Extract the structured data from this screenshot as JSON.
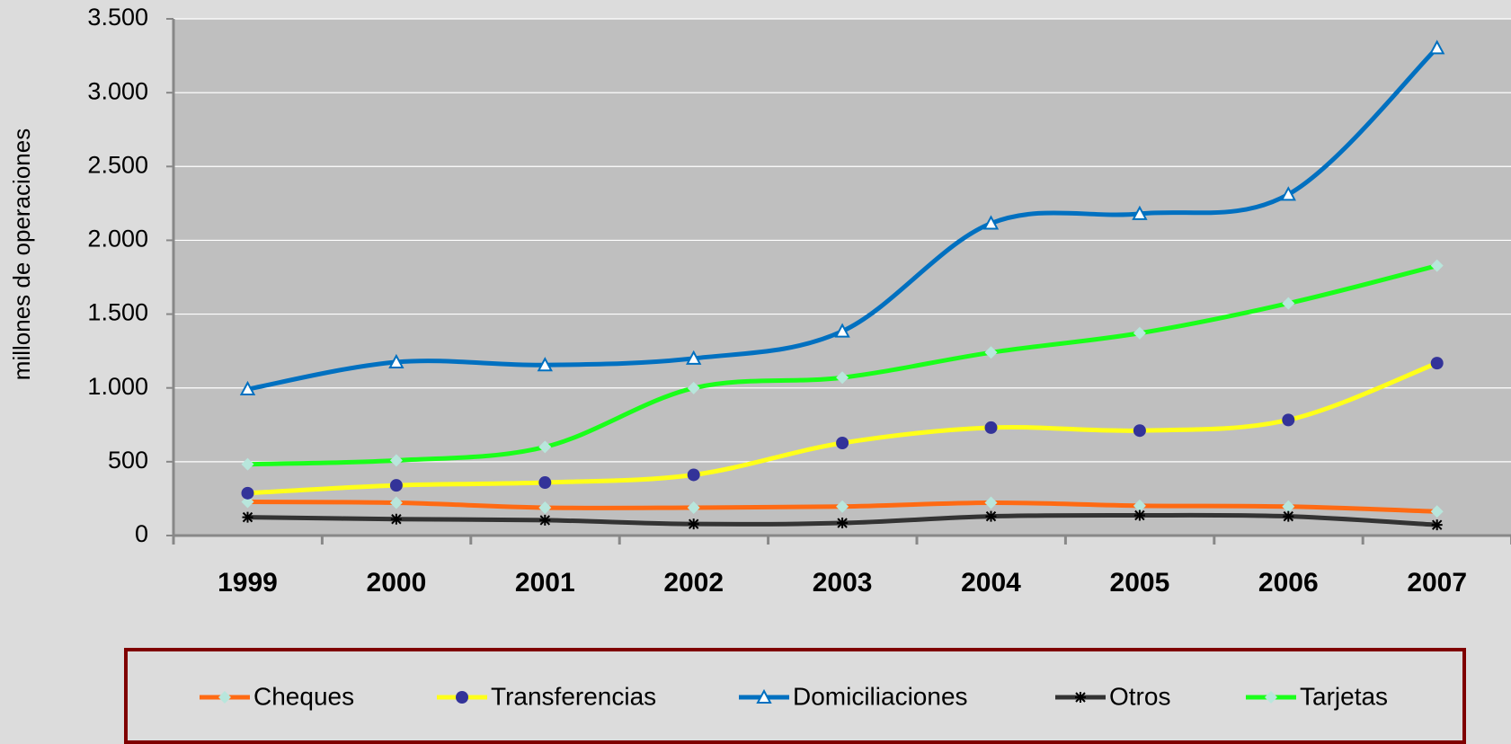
{
  "chart_data": {
    "type": "line",
    "ylabel": "millones de operaciones",
    "categories": [
      "1999",
      "2000",
      "2001",
      "2002",
      "2003",
      "2004",
      "2005",
      "2006",
      "2007"
    ],
    "series": [
      {
        "name": "Cheques",
        "color": "#ff6a13",
        "marker": "diamond",
        "marker_color": "#b8e6dc",
        "values": [
          228,
          222,
          189,
          189,
          196,
          222,
          202,
          196,
          163
        ]
      },
      {
        "name": "Transferencias",
        "color": "#ffff1a",
        "marker": "circle",
        "marker_color": "#333399",
        "values": [
          287,
          340,
          359,
          411,
          627,
          731,
          711,
          783,
          1168
        ]
      },
      {
        "name": "Domiciliaciones",
        "color": "#0070c0",
        "marker": "triangle",
        "marker_color": "#ffffff",
        "values": [
          992,
          1175,
          1155,
          1200,
          1384,
          2115,
          2180,
          2311,
          3303
        ]
      },
      {
        "name": "Otros",
        "color": "#333333",
        "marker": "star",
        "marker_color": "#000000",
        "values": [
          124,
          111,
          104,
          78,
          85,
          130,
          137,
          130,
          72
        ]
      },
      {
        "name": "Tarjetas",
        "color": "#1aff1a",
        "marker": "diamond",
        "marker_color": "#b8e6dc",
        "values": [
          483,
          509,
          600,
          999,
          1070,
          1240,
          1371,
          1573,
          1828
        ]
      }
    ],
    "ylim": [
      0,
      3500
    ],
    "yticks": [
      0,
      500,
      {
        "value": 1000,
        "label": "1.000"
      },
      {
        "value": 1500,
        "label": "1.500"
      },
      {
        "value": 2000,
        "label": "2.000"
      },
      {
        "value": 2500,
        "label": "2.500"
      },
      {
        "value": 3000,
        "label": "3.000"
      },
      {
        "value": 3500,
        "label": "3.500"
      }
    ],
    "grid": true,
    "legend": "bottom"
  }
}
